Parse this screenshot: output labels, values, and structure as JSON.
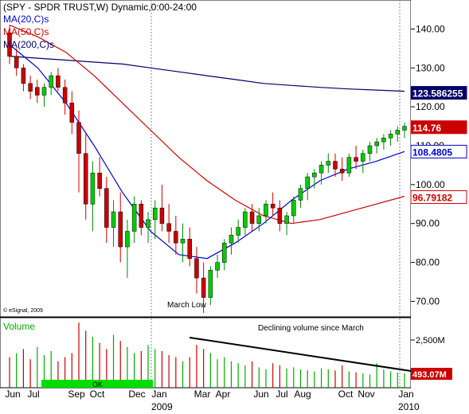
{
  "chart_data": {
    "type": "candlestick",
    "title": "(SPY - SPDR TRUST,W) Dynamic,0:00-24:00",
    "legend": [
      {
        "label": "MA(20,C)s",
        "color": "#0000cc"
      },
      {
        "label": "MA(50,C)s",
        "color": "#cc0000"
      },
      {
        "label": "MA(200,C)s",
        "color": "#000066"
      }
    ],
    "copyright": "© eSignal, 2009",
    "price_axis": {
      "ylim": [
        66,
        145
      ],
      "ticks": [
        "140.00",
        "130.00",
        "120.00",
        "110.00",
        "100.00",
        "90.00",
        "80.00",
        "70.00"
      ]
    },
    "value_tags": [
      {
        "label": "123.586255",
        "value": 123.59,
        "bg": "#000066",
        "fg": "#ffffff"
      },
      {
        "label": "114.76",
        "value": 114.76,
        "bg": "#cc0000",
        "fg": "#ffffff"
      },
      {
        "label": "108.4805",
        "value": 108.48,
        "bg": "#ffffff",
        "fg": "#0000cc",
        "border": "#0000cc"
      },
      {
        "label": "96.79182",
        "value": 96.79,
        "bg": "#ffffff",
        "fg": "#cc0000",
        "border": "#cc0000"
      }
    ],
    "x_months": [
      "Jun",
      "Jul",
      "Sep",
      "Oct",
      "Dec",
      "Jan",
      "Mar",
      "Apr",
      "Jun",
      "Jul",
      "Aug",
      "Oct",
      "Nov",
      "Jan"
    ],
    "x_years": [
      "2009",
      "2010"
    ],
    "annotations": [
      "March Low",
      "Declining volume since March"
    ],
    "ma200": [
      133,
      132.5,
      132,
      131.5,
      131,
      130,
      129,
      128,
      127,
      126,
      125.5,
      125,
      124.6,
      124.3,
      124
    ],
    "ma50": [
      141,
      138,
      134,
      128,
      121,
      114,
      107,
      101,
      96,
      92,
      90,
      91,
      93,
      95,
      97
    ],
    "ma20": [
      136,
      130,
      121,
      110,
      98,
      88,
      82,
      81,
      85,
      90,
      96,
      101,
      104,
      106,
      108.5
    ],
    "candles": [
      [
        139,
        141,
        131,
        133
      ],
      [
        133,
        135,
        128,
        130
      ],
      [
        130,
        131,
        124,
        126
      ],
      [
        126,
        128,
        122,
        124
      ],
      [
        125,
        127,
        121,
        123
      ],
      [
        123,
        126,
        120,
        125
      ],
      [
        125,
        129,
        123,
        128
      ],
      [
        128,
        130,
        124,
        125
      ],
      [
        125,
        127,
        118,
        121
      ],
      [
        121,
        124,
        113,
        116
      ],
      [
        116,
        119,
        98,
        108
      ],
      [
        108,
        113,
        91,
        95
      ],
      [
        95,
        106,
        88,
        103
      ],
      [
        103,
        107,
        97,
        99
      ],
      [
        99,
        102,
        85,
        89
      ],
      [
        89,
        96,
        84,
        93
      ],
      [
        93,
        98,
        80,
        84
      ],
      [
        84,
        91,
        76,
        88
      ],
      [
        88,
        97,
        85,
        95
      ],
      [
        95,
        96,
        87,
        89
      ],
      [
        89,
        93,
        85,
        91
      ],
      [
        91,
        96,
        86,
        94
      ],
      [
        94,
        100,
        88,
        90
      ],
      [
        90,
        95,
        85,
        88
      ],
      [
        88,
        92,
        82,
        85
      ],
      [
        85,
        90,
        80,
        86
      ],
      [
        86,
        89,
        79,
        81
      ],
      [
        81,
        84,
        72,
        76
      ],
      [
        76,
        80,
        67,
        71
      ],
      [
        71,
        79,
        69,
        78
      ],
      [
        78,
        82,
        76,
        80
      ],
      [
        80,
        86,
        78,
        85
      ],
      [
        85,
        89,
        82,
        87
      ],
      [
        87,
        91,
        85,
        89
      ],
      [
        89,
        94,
        87,
        93
      ],
      [
        93,
        95,
        88,
        90
      ],
      [
        90,
        94,
        88,
        92
      ],
      [
        92,
        96,
        90,
        95
      ],
      [
        95,
        98,
        92,
        94
      ],
      [
        94,
        96,
        88,
        90
      ],
      [
        90,
        93,
        87,
        92
      ],
      [
        92,
        97,
        90,
        96
      ],
      [
        96,
        100,
        94,
        99
      ],
      [
        99,
        103,
        96,
        102
      ],
      [
        102,
        104,
        99,
        103
      ],
      [
        103,
        106,
        100,
        105
      ],
      [
        105,
        108,
        103,
        106
      ],
      [
        106,
        108,
        102,
        104
      ],
      [
        104,
        107,
        101,
        103
      ],
      [
        103,
        108,
        102,
        107
      ],
      [
        107,
        110,
        104,
        106
      ],
      [
        106,
        109,
        103,
        108
      ],
      [
        108,
        111,
        106,
        110
      ],
      [
        110,
        112,
        108,
        111
      ],
      [
        111,
        113,
        109,
        112
      ],
      [
        112,
        114,
        110,
        113
      ],
      [
        113,
        115,
        111,
        114
      ],
      [
        114,
        116,
        112,
        115
      ]
    ],
    "volume": {
      "label": "Volume",
      "ylim": [
        0,
        3400
      ],
      "ticks": [
        "2,500M"
      ],
      "tag": {
        "label": "493.07M",
        "value": 493.07,
        "bg": "#cc0000",
        "fg": "#ffffff"
      },
      "ok_label": "OK",
      "bars": [
        1500,
        1700,
        1900,
        1400,
        2000,
        1600,
        1800,
        1300,
        1500,
        1700,
        3200,
        2800,
        2500,
        2200,
        1900,
        2600,
        2300,
        2000,
        1700,
        1800,
        2100,
        1900,
        1800,
        1600,
        1500,
        1300,
        1500,
        2100,
        1900,
        1700,
        1400,
        1500,
        1300,
        1200,
        1100,
        1300,
        1000,
        900,
        1200,
        1100,
        950,
        1000,
        900,
        850,
        800,
        950,
        900,
        850,
        1100,
        800,
        750,
        700,
        650,
        1200,
        900,
        800,
        750,
        700
      ],
      "up": [
        0,
        1,
        0,
        0,
        1,
        1,
        1,
        0,
        0,
        0,
        0,
        0,
        1,
        0,
        0,
        1,
        0,
        1,
        1,
        0,
        1,
        1,
        0,
        0,
        0,
        1,
        0,
        0,
        0,
        1,
        1,
        1,
        1,
        1,
        1,
        0,
        1,
        1,
        0,
        0,
        1,
        1,
        1,
        1,
        1,
        1,
        1,
        0,
        0,
        1,
        0,
        1,
        1,
        1,
        1,
        1,
        1,
        1
      ]
    }
  }
}
